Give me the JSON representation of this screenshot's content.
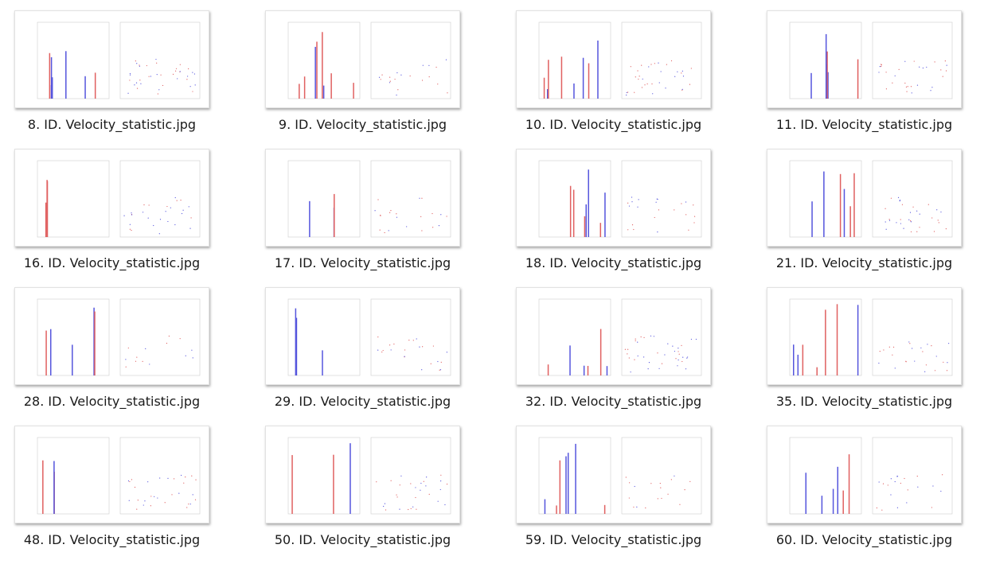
{
  "files": [
    "8. ID. Velocity_statistic.jpg",
    "9. ID. Velocity_statistic.jpg",
    "10. ID. Velocity_statistic.jpg",
    "11. ID. Velocity_statistic.jpg",
    "16. ID. Velocity_statistic.jpg",
    "17. ID. Velocity_statistic.jpg",
    "18. ID. Velocity_statistic.jpg",
    "21. ID. Velocity_statistic.jpg",
    "28. ID. Velocity_statistic.jpg",
    "29. ID. Velocity_statistic.jpg",
    "32. ID. Velocity_statistic.jpg",
    "35. ID. Velocity_statistic.jpg",
    "48. ID. Velocity_statistic.jpg",
    "50. ID. Velocity_statistic.jpg",
    "59. ID. Velocity_statistic.jpg",
    "60. ID. Velocity_statistic.jpg"
  ]
}
